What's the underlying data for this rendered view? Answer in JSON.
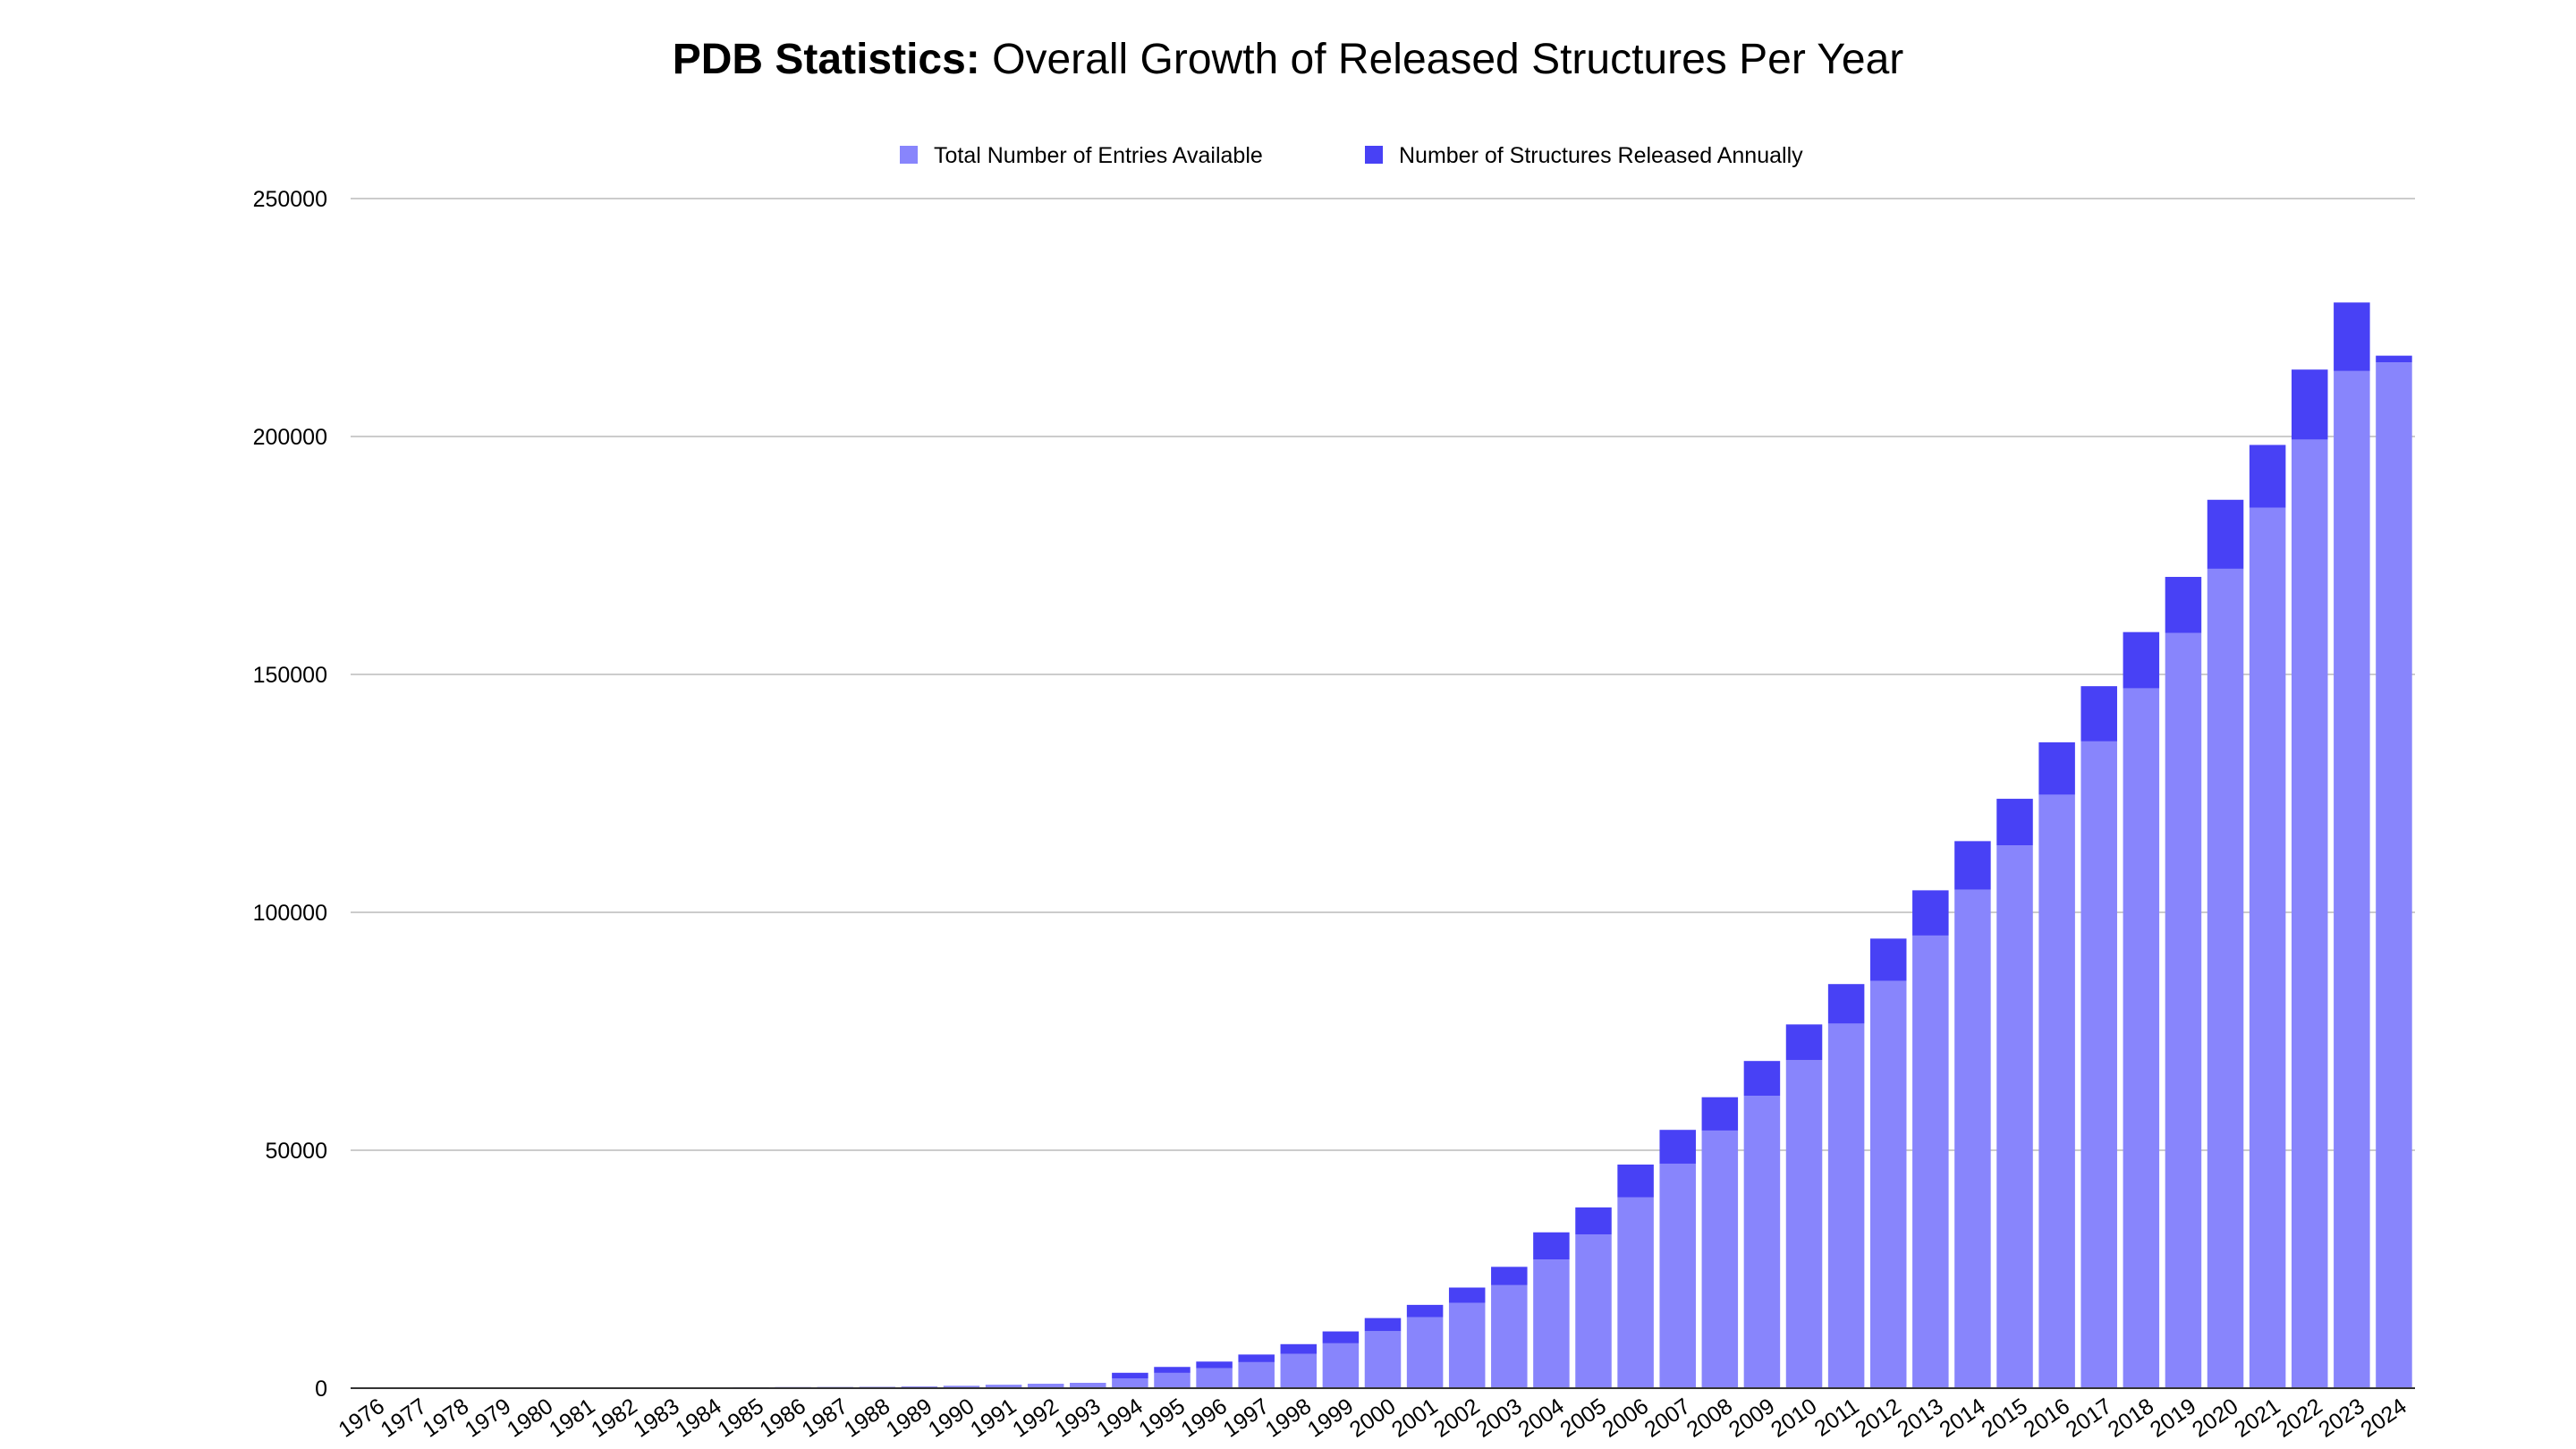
{
  "chart_data": {
    "type": "bar",
    "stacked": true,
    "title_bold": "PDB Statistics:",
    "title_rest": " Overall Growth of Released Structures Per Year",
    "xlabel": "",
    "ylabel": "",
    "ylim": [
      0,
      250000
    ],
    "yticks": [
      0,
      50000,
      100000,
      150000,
      200000,
      250000
    ],
    "ytick_labels": [
      "0",
      "50000",
      "100000",
      "150000",
      "200000",
      "250000"
    ],
    "grid": true,
    "legend_position": "top-center",
    "categories": [
      "1976",
      "1977",
      "1978",
      "1979",
      "1980",
      "1981",
      "1982",
      "1983",
      "1984",
      "1985",
      "1986",
      "1987",
      "1988",
      "1989",
      "1990",
      "1991",
      "1992",
      "1993",
      "1994",
      "1995",
      "1996",
      "1997",
      "1998",
      "1999",
      "2000",
      "2001",
      "2002",
      "2003",
      "2004",
      "2005",
      "2006",
      "2007",
      "2008",
      "2009",
      "2010",
      "2011",
      "2012",
      "2013",
      "2014",
      "2015",
      "2016",
      "2017",
      "2018",
      "2019",
      "2020",
      "2021",
      "2022",
      "2023",
      "2024"
    ],
    "series": [
      {
        "name": "Total Number of Entries Available",
        "color": "#8885fc",
        "values": [
          13,
          13,
          36,
          69,
          69,
          80,
          110,
          151,
          186,
          214,
          244,
          264,
          296,
          370,
          504,
          723,
          932,
          1126,
          2056,
          3214,
          4192,
          5472,
          7202,
          9429,
          11984,
          14905,
          17946,
          21650,
          27051,
          32289,
          40093,
          47185,
          54146,
          61462,
          68941,
          76624,
          85585,
          95128,
          104766,
          114064,
          124733,
          135927,
          147096,
          158694,
          172198,
          185025,
          199362,
          213756,
          215583
        ]
      },
      {
        "name": "Number of Structures Released Annually",
        "color": "#4841f5",
        "values": [
          0,
          0,
          0,
          0,
          0,
          0,
          0,
          0,
          0,
          0,
          0,
          0,
          0,
          0,
          0,
          0,
          0,
          0,
          1180,
          1250,
          1400,
          1600,
          2050,
          2500,
          2750,
          2600,
          3200,
          3850,
          5700,
          5700,
          6900,
          7100,
          7000,
          7300,
          7500,
          8300,
          8900,
          9500,
          10200,
          9800,
          11000,
          11600,
          11800,
          11800,
          14500,
          13200,
          14700,
          14400,
          1400
        ]
      }
    ]
  }
}
